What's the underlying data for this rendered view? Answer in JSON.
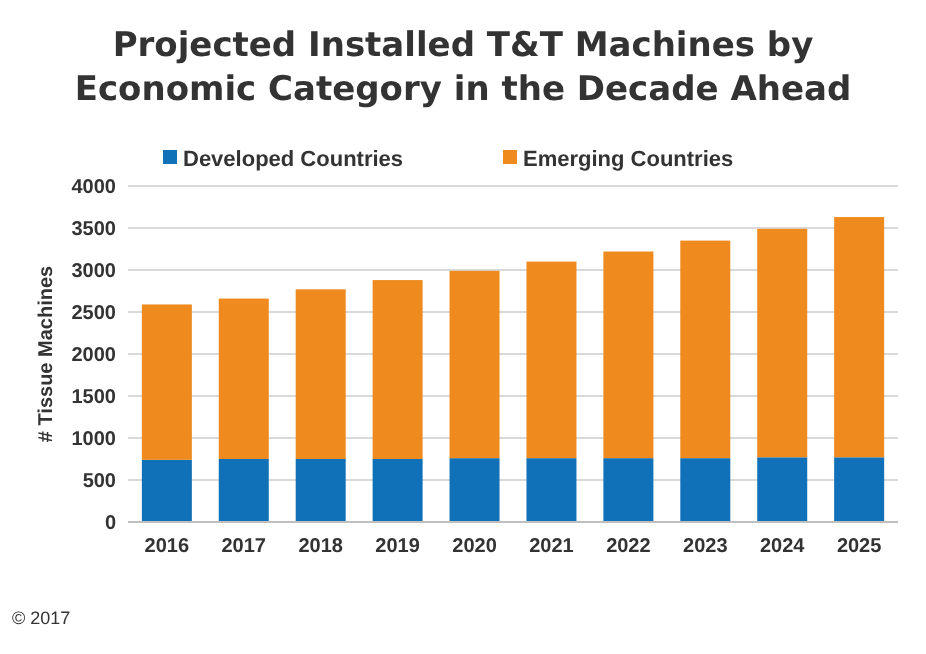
{
  "chart_data": {
    "type": "bar",
    "title": "Projected Installed T&T Machines by Economic Category in the Decade Ahead",
    "ylabel": "# Tissue Machines",
    "categories": [
      "2016",
      "2017",
      "2018",
      "2019",
      "2020",
      "2021",
      "2022",
      "2023",
      "2024",
      "2025"
    ],
    "stacked": true,
    "series": [
      {
        "name": "Developed Countries",
        "color": "#1070b8",
        "values": [
          740,
          750,
          750,
          750,
          760,
          760,
          760,
          760,
          770,
          770
        ]
      },
      {
        "name": "Emerging Countries",
        "color": "#ee8a1e",
        "values": [
          1850,
          1910,
          2020,
          2130,
          2230,
          2340,
          2460,
          2590,
          2720,
          2860
        ]
      }
    ],
    "ylim": [
      0,
      4000
    ],
    "yticks": [
      0,
      500,
      1000,
      1500,
      2000,
      2500,
      3000,
      3500,
      4000
    ],
    "grid": "y",
    "legend": "top",
    "annotations": [
      "© 2017"
    ]
  }
}
